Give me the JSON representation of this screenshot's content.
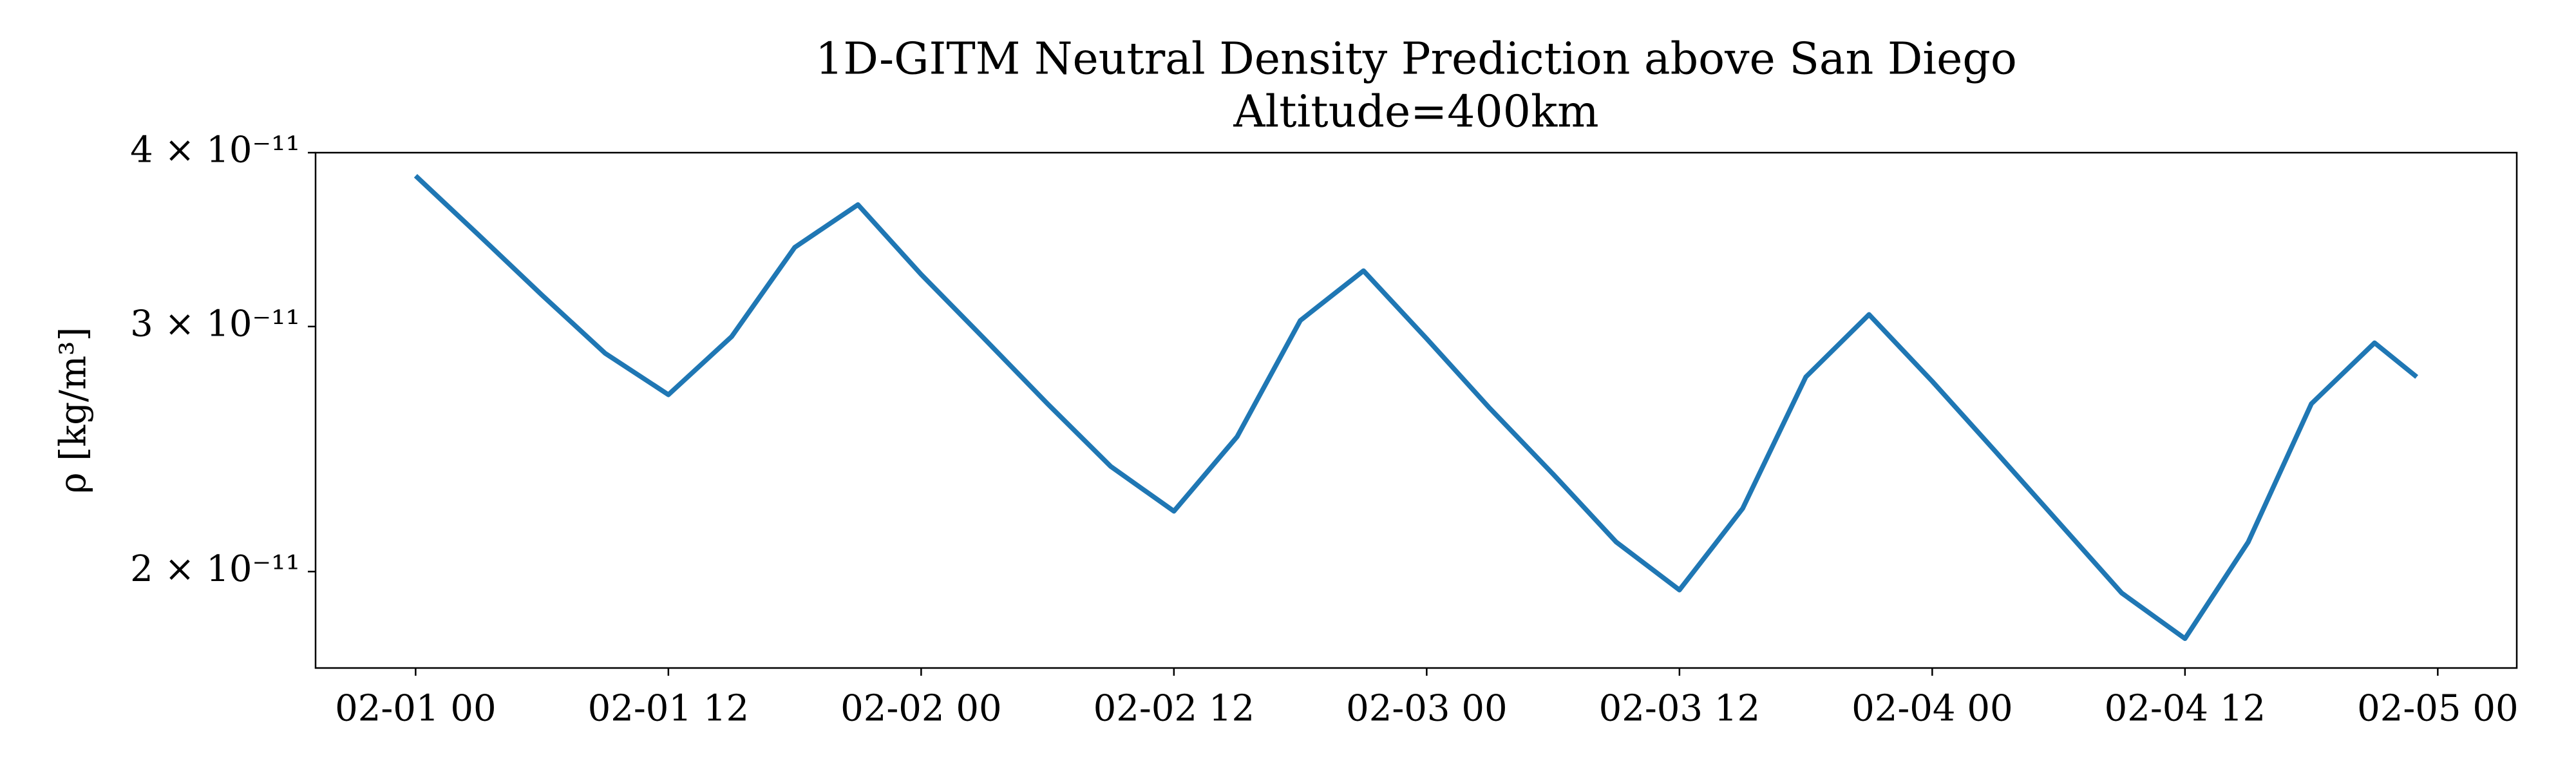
{
  "chart_data": {
    "type": "line",
    "title": "1D-GITM Neutral Density Prediction above San Diego",
    "subtitle": "Altitude=400km",
    "y_label": "ρ [kg/m³]",
    "color": "#1f77b4",
    "log_y": true,
    "x": [
      "02-01 00",
      "02-01 03",
      "02-01 06",
      "02-01 09",
      "02-01 12",
      "02-01 15",
      "02-01 18",
      "02-01 21",
      "02-02 00",
      "02-02 03",
      "02-02 06",
      "02-02 09",
      "02-02 12",
      "02-02 15",
      "02-02 18",
      "02-02 21",
      "02-03 00",
      "02-03 03",
      "02-03 06",
      "02-03 09",
      "02-03 12",
      "02-03 15",
      "02-03 18",
      "02-03 21",
      "02-04 00",
      "02-04 03",
      "02-04 06",
      "02-04 09",
      "02-04 12",
      "02-04 15",
      "02-04 18",
      "02-04 21",
      "02-04 23"
    ],
    "values": [
      3.85e-11,
      3.49e-11,
      3.16e-11,
      2.87e-11,
      2.68e-11,
      2.95e-11,
      3.42e-11,
      3.67e-11,
      3.27e-11,
      2.94e-11,
      2.64e-11,
      2.38e-11,
      2.21e-11,
      2.5e-11,
      3.03e-11,
      3.29e-11,
      2.94e-11,
      2.62e-11,
      2.35e-11,
      2.1e-11,
      1.94e-11,
      2.22e-11,
      2.76e-11,
      3.06e-11,
      2.74e-11,
      2.44e-11,
      2.17e-11,
      1.93e-11,
      1.79e-11,
      2.1e-11,
      2.64e-11,
      2.92e-11,
      2.76e-11
    ],
    "xticks": [
      "02-01 00",
      "02-01 12",
      "02-02 00",
      "02-02 12",
      "02-03 00",
      "02-03 12",
      "02-04 00",
      "02-04 12",
      "02-05 00"
    ],
    "ylim": [
      1.705e-11,
      4e-11
    ],
    "yticks": [
      {
        "value": 2e-11,
        "label": "2 × 10⁻¹¹"
      },
      {
        "value": 3e-11,
        "label": "3 × 10⁻¹¹"
      },
      {
        "value": 4e-11,
        "label": "4 × 10⁻¹¹"
      }
    ]
  }
}
